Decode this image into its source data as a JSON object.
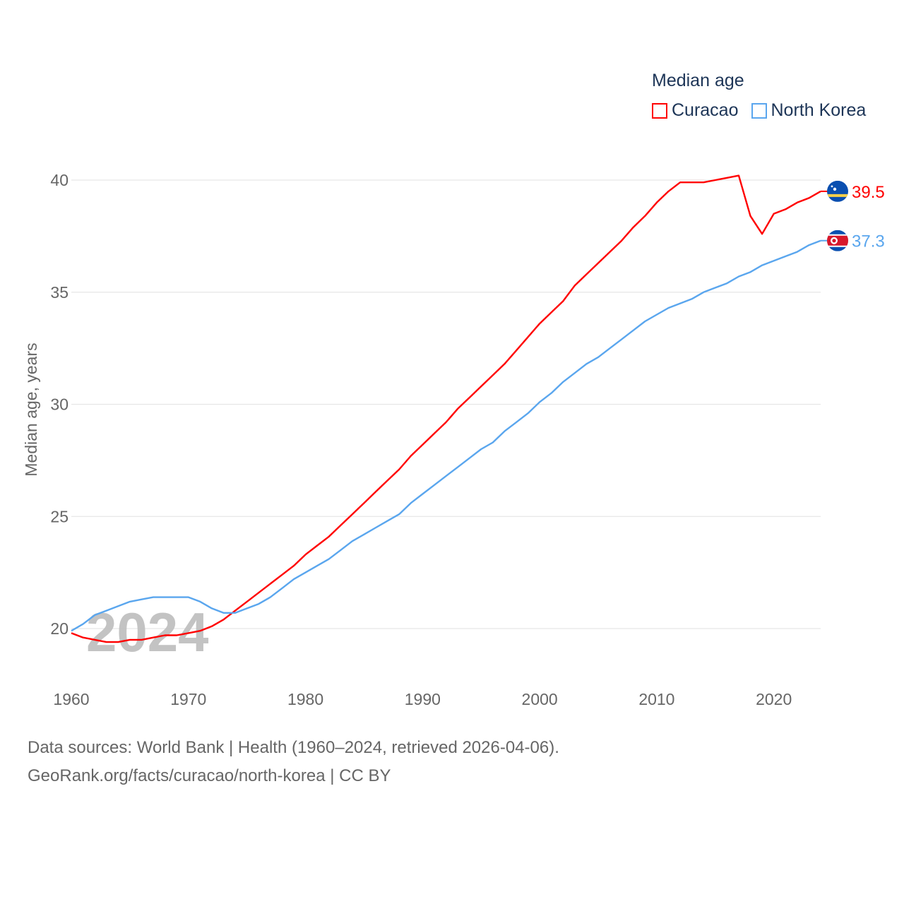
{
  "chart_data": {
    "type": "line",
    "title": "Median age",
    "ylabel": "Median age, years",
    "xlabel": "",
    "xlim": [
      1960,
      2024
    ],
    "ylim": [
      17,
      42
    ],
    "yticks": [
      20,
      25,
      30,
      35,
      40
    ],
    "xticks": [
      1960,
      1970,
      1980,
      1990,
      2000,
      2010,
      2020
    ],
    "grid": true,
    "legend_placement": "top-right",
    "watermark_year": "2024",
    "x": [
      1960,
      1961,
      1962,
      1963,
      1964,
      1965,
      1966,
      1967,
      1968,
      1969,
      1970,
      1971,
      1972,
      1973,
      1974,
      1975,
      1976,
      1977,
      1978,
      1979,
      1980,
      1981,
      1982,
      1983,
      1984,
      1985,
      1986,
      1987,
      1988,
      1989,
      1990,
      1991,
      1992,
      1993,
      1994,
      1995,
      1996,
      1997,
      1998,
      1999,
      2000,
      2001,
      2002,
      2003,
      2004,
      2005,
      2006,
      2007,
      2008,
      2009,
      2010,
      2011,
      2012,
      2013,
      2014,
      2015,
      2016,
      2017,
      2018,
      2019,
      2020,
      2021,
      2022,
      2023,
      2024
    ],
    "series": [
      {
        "name": "Curacao",
        "color": "#ff0000",
        "end_label": "39.5",
        "flag": "curacao-flag",
        "values": [
          19.8,
          19.6,
          19.5,
          19.4,
          19.4,
          19.5,
          19.5,
          19.6,
          19.7,
          19.7,
          19.8,
          19.9,
          20.1,
          20.4,
          20.8,
          21.2,
          21.6,
          22.0,
          22.4,
          22.8,
          23.3,
          23.7,
          24.1,
          24.6,
          25.1,
          25.6,
          26.1,
          26.6,
          27.1,
          27.7,
          28.2,
          28.7,
          29.2,
          29.8,
          30.3,
          30.8,
          31.3,
          31.8,
          32.4,
          33.0,
          33.6,
          34.1,
          34.6,
          35.3,
          35.8,
          36.3,
          36.8,
          37.3,
          37.9,
          38.4,
          39.0,
          39.5,
          39.9,
          39.9,
          39.9,
          40.0,
          40.1,
          40.2,
          38.4,
          37.6,
          38.5,
          38.7,
          39.0,
          39.2,
          39.5
        ]
      },
      {
        "name": "North Korea",
        "color": "#5aa6ee",
        "end_label": "37.3",
        "flag": "north-korea-flag",
        "values": [
          19.9,
          20.2,
          20.6,
          20.8,
          21.0,
          21.2,
          21.3,
          21.4,
          21.4,
          21.4,
          21.4,
          21.2,
          20.9,
          20.7,
          20.7,
          20.9,
          21.1,
          21.4,
          21.8,
          22.2,
          22.5,
          22.8,
          23.1,
          23.5,
          23.9,
          24.2,
          24.5,
          24.8,
          25.1,
          25.6,
          26.0,
          26.4,
          26.8,
          27.2,
          27.6,
          28.0,
          28.3,
          28.8,
          29.2,
          29.6,
          30.1,
          30.5,
          31.0,
          31.4,
          31.8,
          32.1,
          32.5,
          32.9,
          33.3,
          33.7,
          34.0,
          34.3,
          34.5,
          34.7,
          35.0,
          35.2,
          35.4,
          35.7,
          35.9,
          36.2,
          36.4,
          36.6,
          36.8,
          37.1,
          37.3
        ]
      }
    ]
  },
  "footer": {
    "line1": "Data sources: World Bank | Health (1960–2024, retrieved 2026-04-06).",
    "line2": "GeoRank.org/facts/curacao/north-korea | CC BY"
  }
}
